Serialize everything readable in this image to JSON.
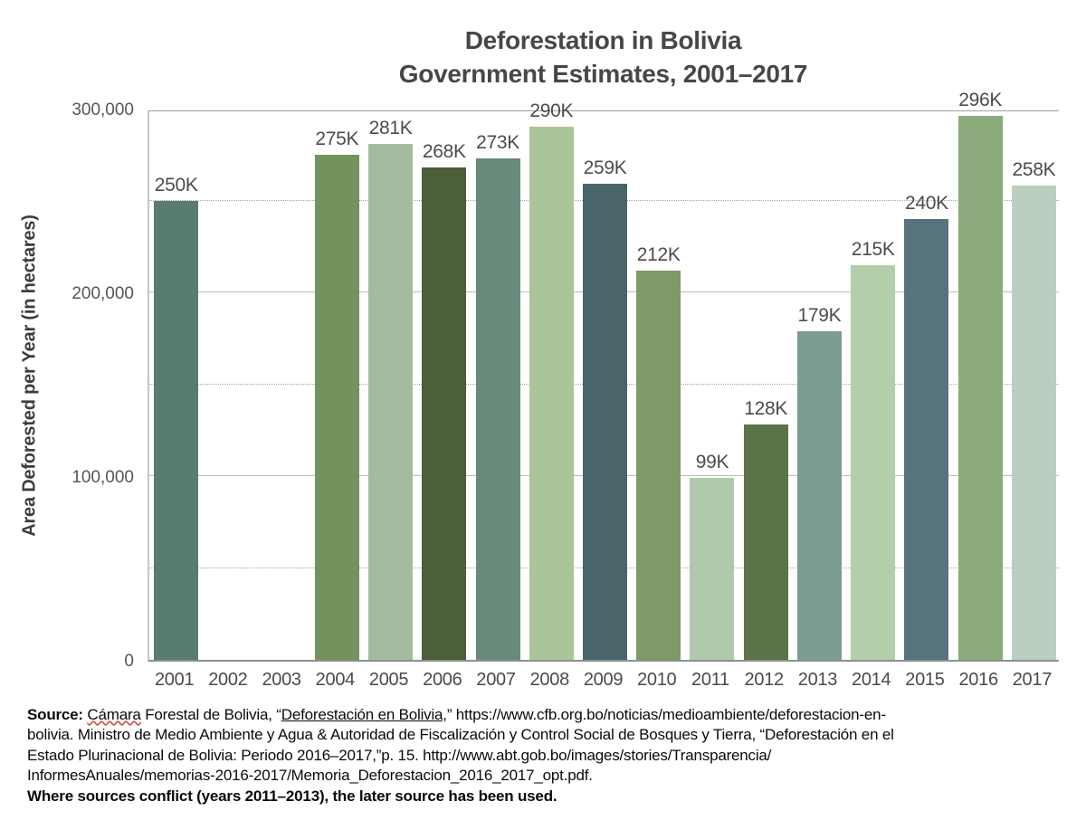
{
  "title": {
    "line1": "Deforestation in Bolivia",
    "line2": "Government Estimates, 2001–2017"
  },
  "chart_data": {
    "type": "bar",
    "title": "Deforestation in Bolivia — Government Estimates, 2001–2017",
    "xlabel": "",
    "ylabel": "Area Deforested per Year (in hectares)",
    "ylim": [
      0,
      300000
    ],
    "legend": "none",
    "yticks": [
      {
        "value": 0,
        "label": "0"
      },
      {
        "value": 100000,
        "label": "100,000"
      },
      {
        "value": 200000,
        "label": "200,000"
      },
      {
        "value": 300000,
        "label": "300,000"
      }
    ],
    "grid": {
      "solid": [
        100000,
        200000
      ],
      "dotted": [
        50000,
        150000,
        250000
      ],
      "top_border": 300000
    },
    "categories": [
      "2001",
      "2002",
      "2003",
      "2004",
      "2005",
      "2006",
      "2007",
      "2008",
      "2009",
      "2010",
      "2011",
      "2012",
      "2013",
      "2014",
      "2015",
      "2016",
      "2017"
    ],
    "bars": [
      {
        "year": "2001",
        "value": 250000,
        "label": "250K",
        "color": "#587C72"
      },
      {
        "year": "2002",
        "value": null,
        "label": "",
        "color": null
      },
      {
        "year": "2003",
        "value": null,
        "label": "",
        "color": null
      },
      {
        "year": "2004",
        "value": 275000,
        "label": "275K",
        "color": "#74935C"
      },
      {
        "year": "2005",
        "value": 281000,
        "label": "281K",
        "color": "#A5BBA0"
      },
      {
        "year": "2006",
        "value": 268000,
        "label": "268K",
        "color": "#4C5E3A"
      },
      {
        "year": "2007",
        "value": 273000,
        "label": "273K",
        "color": "#69897B"
      },
      {
        "year": "2008",
        "value": 290000,
        "label": "290K",
        "color": "#A9C599"
      },
      {
        "year": "2009",
        "value": 259000,
        "label": "259K",
        "color": "#4A656A"
      },
      {
        "year": "2010",
        "value": 212000,
        "label": "212K",
        "color": "#7E9B67"
      },
      {
        "year": "2011",
        "value": 99000,
        "label": "99K",
        "color": "#AFC9AB"
      },
      {
        "year": "2012",
        "value": 128000,
        "label": "128K",
        "color": "#5C7247"
      },
      {
        "year": "2013",
        "value": 179000,
        "label": "179K",
        "color": "#7A9C91"
      },
      {
        "year": "2014",
        "value": 215000,
        "label": "215K",
        "color": "#B3CFAA"
      },
      {
        "year": "2015",
        "value": 240000,
        "label": "240K",
        "color": "#57737E"
      },
      {
        "year": "2016",
        "value": 296000,
        "label": "296K",
        "color": "#8CAB7B"
      },
      {
        "year": "2017",
        "value": 258000,
        "label": "258K",
        "color": "#B9CFC0"
      }
    ]
  },
  "source_lines": [
    {
      "segments": [
        {
          "text": "Source: ",
          "bold": true
        },
        {
          "text": "Cámara",
          "squiggle": true
        },
        {
          "text": " Forestal de Bolivia, “"
        },
        {
          "text": "Deforestación en Bolivia,",
          "underline": true
        },
        {
          "text": "” https://www.cfb.org.bo/noticias/medioambiente/deforestacion-en-"
        }
      ]
    },
    {
      "segments": [
        {
          "text": "bolivia. Ministro de Medio Ambiente y Agua & Autoridad de Fiscalización y Control Social de Bosques y Tierra, “Deforestación en el"
        }
      ]
    },
    {
      "segments": [
        {
          "text": "Estado Plurinacional de Bolivia: Periodo 2016–2017,”p. 15. http://www.abt.gob.bo/images/stories/Transparencia/"
        }
      ]
    },
    {
      "segments": [
        {
          "text": "InformesAnuales/memorias-2016-2017/Memoria_Deforestacion_2016_2017_opt.pdf."
        }
      ]
    },
    {
      "segments": [
        {
          "text": "Where sources conflict (years 2011–2013), the later source has been used.",
          "bold": true
        }
      ]
    }
  ]
}
